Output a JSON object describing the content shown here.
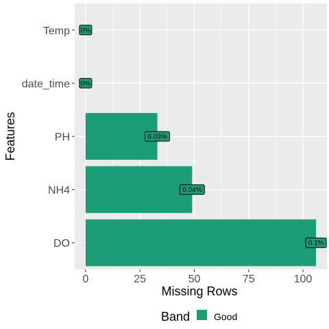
{
  "chart_data": {
    "type": "bar",
    "orientation": "horizontal",
    "categories": [
      "Temp",
      "date_time",
      "PH",
      "NH4",
      "DO"
    ],
    "values": [
      0,
      0,
      33,
      49,
      106
    ],
    "data_labels": [
      "0%",
      "0%",
      "0.03%",
      "0.04%",
      "0.1%"
    ],
    "bands": [
      "Good",
      "Good",
      "Good",
      "Good",
      "Good"
    ],
    "xlabel": "Missing Rows",
    "ylabel": "Features",
    "xlim": [
      -5,
      111
    ],
    "xticks": [
      0,
      25,
      50,
      75,
      100
    ],
    "xtick_labels": [
      "0",
      "25",
      "50",
      "75",
      "100"
    ],
    "grid": true,
    "legend": {
      "title": "Band",
      "position": "bottom",
      "entries": [
        {
          "label": "Good",
          "color": "#1b9e77"
        }
      ]
    },
    "colors": {
      "bar": "#1b9e77",
      "panel": "#ebebeb",
      "grid": "#ffffff"
    }
  }
}
